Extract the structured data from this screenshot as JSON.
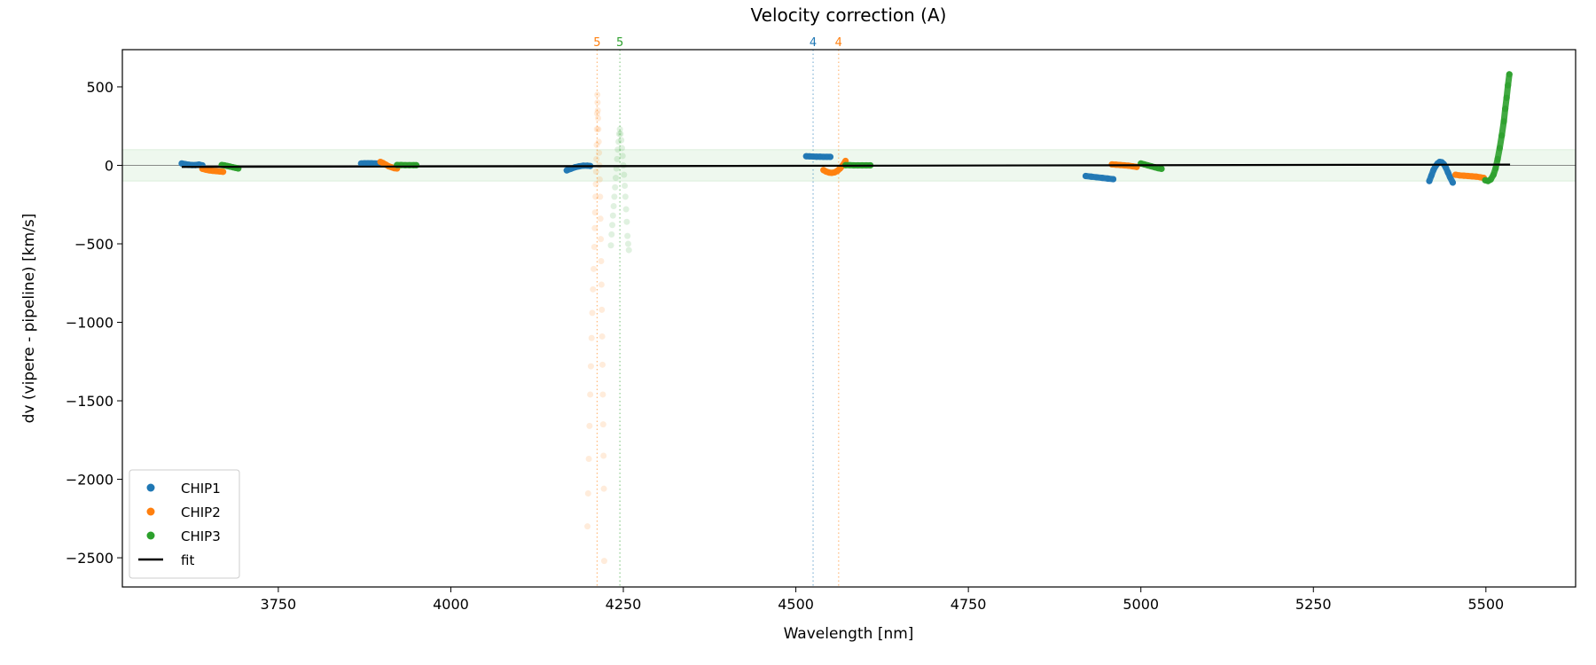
{
  "chart_data": {
    "type": "scatter",
    "title": "Velocity correction (A)",
    "xlabel": "Wavelength [nm]",
    "ylabel": "dv (vipere - pipeline) [km/s]",
    "xlim": [
      3524,
      5630
    ],
    "ylim": [
      -2686,
      737
    ],
    "xticks": [
      3750,
      4000,
      4250,
      4500,
      4750,
      5000,
      5250,
      5500
    ],
    "yticks": [
      500,
      0,
      -500,
      -1000,
      -1500,
      -2000,
      -2500
    ],
    "band": [
      -100,
      100
    ],
    "band_color": "#2ca02c",
    "legend_position": "lower-left",
    "series": [
      {
        "name": "CHIP1",
        "color": "#1f77b4",
        "segments": [
          {
            "x": [
              3610,
              3615,
              3620,
              3625,
              3630,
              3635,
              3640
            ],
            "y": [
              12,
              8,
              4,
              2,
              2,
              5,
              0
            ]
          },
          {
            "x": [
              3870,
              3875,
              3880,
              3885,
              3890,
              3895,
              3900
            ],
            "y": [
              12,
              13,
              13,
              13,
              12,
              12,
              10
            ]
          },
          {
            "x": [
              4168,
              4174,
              4180,
              4186,
              4192,
              4198,
              4202
            ],
            "y": [
              -32,
              -22,
              -12,
              -6,
              -2,
              -2,
              -4
            ]
          },
          {
            "x": [
              4515,
              4520,
              4525,
              4530,
              4535,
              4540,
              4545,
              4550
            ],
            "y": [
              58,
              57,
              56,
              55,
              55,
              54,
              54,
              54
            ]
          },
          {
            "x": [
              4920,
              4928,
              4936,
              4944,
              4952,
              4960
            ],
            "y": [
              -68,
              -72,
              -76,
              -80,
              -84,
              -88
            ]
          },
          {
            "x": [
              5418,
              5421,
              5424,
              5427,
              5430,
              5433,
              5436,
              5439,
              5442,
              5445,
              5448,
              5452
            ],
            "y": [
              -100,
              -65,
              -30,
              -5,
              12,
              22,
              20,
              8,
              -15,
              -45,
              -75,
              -110
            ]
          }
        ]
      },
      {
        "name": "CHIP2",
        "color": "#ff7f0e",
        "segments": [
          {
            "x": [
              3640,
              3645,
              3650,
              3655,
              3660,
              3665,
              3670
            ],
            "y": [
              -22,
              -28,
              -32,
              -35,
              -37,
              -39,
              -41
            ]
          },
          {
            "x": [
              3898,
              3902,
              3906,
              3910,
              3914,
              3918,
              3922
            ],
            "y": [
              22,
              14,
              4,
              -6,
              -12,
              -18,
              -20
            ]
          },
          {
            "x": [
              4540,
              4544,
              4548,
              4552,
              4556,
              4560,
              4564,
              4568,
              4572
            ],
            "y": [
              -30,
              -40,
              -46,
              -48,
              -45,
              -36,
              -20,
              0,
              28
            ]
          },
          {
            "x": [
              4958,
              4964,
              4970,
              4976,
              4982,
              4988,
              4994
            ],
            "y": [
              6,
              4,
              2,
              0,
              -2,
              -6,
              -10
            ]
          },
          {
            "x": [
              5456,
              5462,
              5468,
              5474,
              5480,
              5486,
              5492,
              5497
            ],
            "y": [
              -60,
              -64,
              -66,
              -68,
              -70,
              -72,
              -76,
              -80
            ]
          }
        ],
        "rejected": {
          "x": [
            4198,
            4199,
            4200,
            4201,
            4202,
            4203,
            4204,
            4205,
            4206,
            4207,
            4208,
            4208.6,
            4209.2,
            4209.7,
            4210.2,
            4210.6,
            4211,
            4211.4,
            4211.7,
            4212,
            4212.3,
            4212.6,
            4213,
            4213.4,
            4213.8,
            4214.3,
            4214.8,
            4215.3,
            4215.8,
            4216.3,
            4216.8,
            4217.3,
            4217.8,
            4218.3,
            4218.8,
            4219.3,
            4219.8,
            4220.3,
            4220.8,
            4221.3,
            4221.8,
            4222.3
          ],
          "y": [
            -2300,
            -2090,
            -1870,
            -1660,
            -1460,
            -1280,
            -1100,
            -940,
            -790,
            -660,
            -520,
            -400,
            -300,
            -200,
            -120,
            -40,
            40,
            130,
            230,
            330,
            450,
            400,
            350,
            300,
            230,
            150,
            80,
            0,
            -90,
            -200,
            -340,
            -470,
            -610,
            -760,
            -920,
            -1090,
            -1270,
            -1460,
            -1650,
            -1850,
            -2060,
            -2520
          ]
        }
      },
      {
        "name": "CHIP3",
        "color": "#2ca02c",
        "segments": [
          {
            "x": [
              3668,
              3672,
              3676,
              3680,
              3684,
              3688,
              3692
            ],
            "y": [
              2,
              0,
              -4,
              -8,
              -12,
              -16,
              -20
            ]
          },
          {
            "x": [
              3922,
              3928,
              3934,
              3940,
              3946,
              3950
            ],
            "y": [
              2,
              2,
              1,
              1,
              1,
              1
            ]
          },
          {
            "x": [
              4572,
              4578,
              4584,
              4590,
              4596,
              4602,
              4608
            ],
            "y": [
              1,
              1,
              0,
              0,
              0,
              0,
              0
            ]
          },
          {
            "x": [
              5000,
              5005,
              5010,
              5015,
              5020,
              5025,
              5030
            ],
            "y": [
              12,
              6,
              0,
              -6,
              -12,
              -18,
              -22
            ]
          },
          {
            "x": [
              5499,
              5503,
              5507,
              5511,
              5514,
              5517,
              5520,
              5523,
              5526,
              5528,
              5530,
              5532,
              5534
            ],
            "y": [
              -95,
              -100,
              -90,
              -60,
              -20,
              40,
              110,
              190,
              280,
              360,
              430,
              510,
              580
            ]
          }
        ],
        "rejected": {
          "x": [
            4232,
            4233,
            4234,
            4235,
            4236,
            4237,
            4238,
            4239,
            4240,
            4241,
            4242,
            4243,
            4244,
            4245,
            4246,
            4247,
            4248,
            4249,
            4250,
            4251,
            4252,
            4253,
            4254,
            4255,
            4256,
            4257,
            4258
          ],
          "y": [
            -510,
            -440,
            -380,
            -320,
            -260,
            -200,
            -140,
            -80,
            -20,
            40,
            100,
            150,
            200,
            230,
            200,
            160,
            110,
            60,
            0,
            -60,
            -130,
            -200,
            -280,
            -360,
            -450,
            -500,
            -540
          ]
        }
      },
      {
        "name": "fit",
        "color": "#000000",
        "type": "line",
        "x": [
          3610,
          5535
        ],
        "y": [
          -10,
          5
        ]
      }
    ],
    "markers": [
      {
        "x": 4212,
        "label": "5",
        "color": "#ff7f0e"
      },
      {
        "x": 4245,
        "label": "5",
        "color": "#2ca02c"
      },
      {
        "x": 4525,
        "label": "4",
        "color": "#1f77b4"
      },
      {
        "x": 4562,
        "label": "4",
        "color": "#ff7f0e"
      }
    ]
  }
}
